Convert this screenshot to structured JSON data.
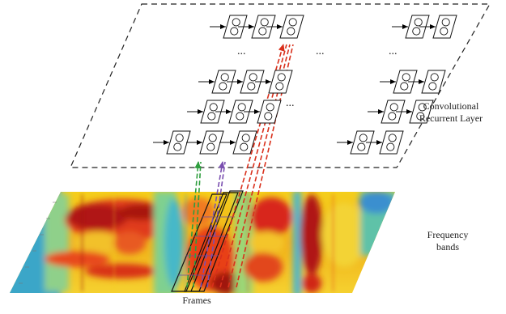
{
  "labels": {
    "layer_line1": "Convolutional",
    "layer_line2": "Recurrent Layer",
    "frequency_line1": "Frequency",
    "frequency_line2": "bands",
    "frames": "Frames"
  },
  "ellipsis": "...",
  "colors": {
    "frame": "#000000",
    "arrow_green": "#2e9e3e",
    "arrow_purple": "#7a4fb0",
    "arrow_red": "#d9301c"
  }
}
